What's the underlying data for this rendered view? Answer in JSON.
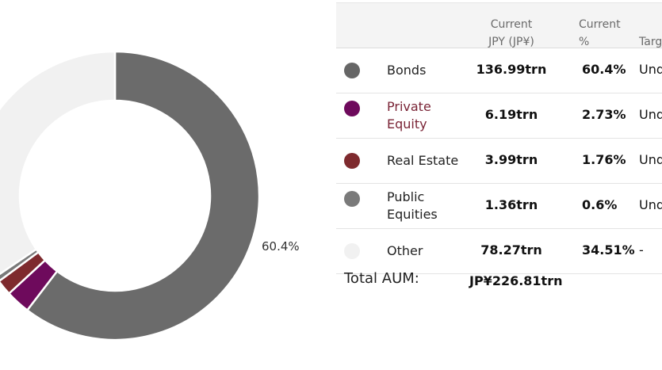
{
  "chart_data": {
    "type": "pie",
    "categories": [
      "Bonds",
      "Private Equity",
      "Real Estate",
      "Public Equities",
      "Other"
    ],
    "values": [
      60.4,
      2.73,
      1.76,
      0.6,
      34.51
    ],
    "colors": [
      "#6b6b6b",
      "#6e0a5c",
      "#7e2a2e",
      "#7a7a7a",
      "#f1f1f1"
    ],
    "slice_label": "60.4%",
    "donut": true
  },
  "table": {
    "headers": {
      "jpy_line1": "Current",
      "jpy_line2": "JPY (JP¥)",
      "pct_line1": "Current",
      "pct_line2": "%",
      "target": "Targ"
    },
    "rows": [
      {
        "name": "Bonds",
        "jpy": "136.99trn",
        "pct": "60.4%",
        "target": "Und",
        "color": "#666666",
        "link": false
      },
      {
        "name": "Private Equity",
        "name_line1": "Private",
        "name_line2": "Equity",
        "jpy": "6.19trn",
        "pct": "2.73%",
        "target": "Und",
        "color": "#6e0a5c",
        "link": true
      },
      {
        "name": "Real Estate",
        "jpy": "3.99trn",
        "pct": "1.76%",
        "target": "Und",
        "color": "#7e2a2e",
        "link": false
      },
      {
        "name": "Public Equities",
        "name_line1": "Public",
        "name_line2": "Equities",
        "jpy": "1.36trn",
        "pct": "0.6%",
        "target": "Und",
        "color": "#7a7a7a",
        "link": false
      },
      {
        "name": "Other",
        "jpy": "78.27trn",
        "pct": "34.51%",
        "target": "-",
        "color": "#f1f1f1",
        "link": false
      }
    ],
    "total_label": "Total AUM:",
    "total_value": "JP¥226.81trn"
  }
}
